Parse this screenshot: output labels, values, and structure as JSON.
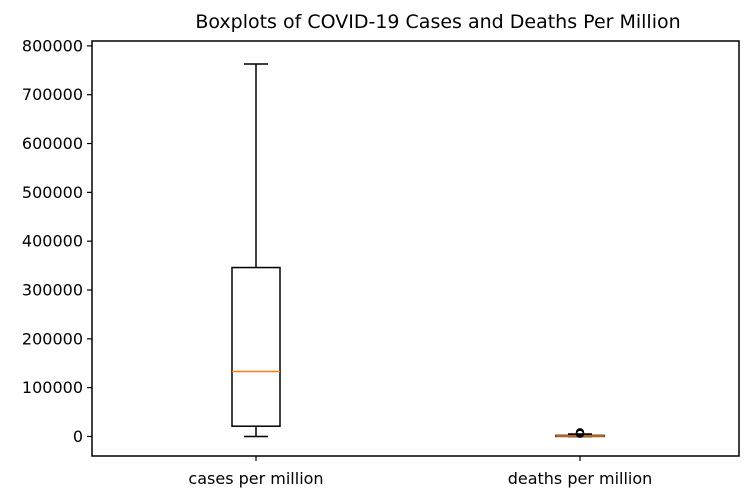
{
  "chart_data": {
    "type": "boxplot",
    "title": "Boxplots of COVID-19 Cases and Deaths Per Million",
    "xlabel": "",
    "ylabel": "",
    "categories": [
      "cases per million",
      "deaths per million"
    ],
    "ylim": [
      -40000,
      810000
    ],
    "yticks": [
      0,
      100000,
      200000,
      300000,
      400000,
      500000,
      600000,
      700000,
      800000
    ],
    "ytick_labels": [
      "0",
      "100000",
      "200000",
      "300000",
      "400000",
      "500000",
      "600000",
      "700000",
      "800000"
    ],
    "boxes": [
      {
        "label": "cases per million",
        "whisker_low": 0,
        "q1": 21000,
        "median": 133000,
        "q3": 346000,
        "whisker_high": 763000,
        "outliers": []
      },
      {
        "label": "deaths per million",
        "whisker_low": 0,
        "q1": 100,
        "median": 900,
        "q3": 2200,
        "whisker_high": 5000,
        "outliers": [
          5500,
          6500,
          7500,
          8500
        ]
      }
    ],
    "colors": {
      "box": "#000000",
      "median": "#ff7f0e",
      "axes": "#000000"
    },
    "grid": false,
    "legend": "none"
  }
}
